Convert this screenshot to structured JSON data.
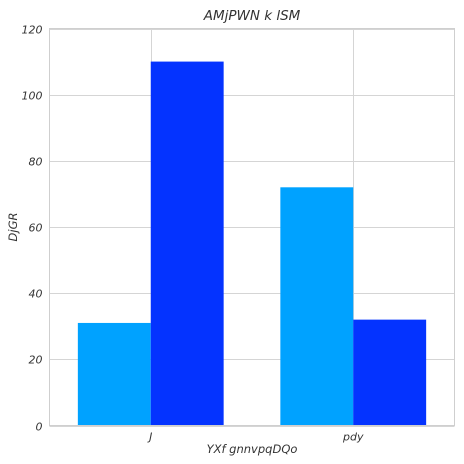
{
  "chart_data": {
    "type": "bar",
    "title": "AMjPWN k lSM",
    "xlabel": "YXf gnnvpqDQo",
    "ylabel": "DjGR",
    "categories": [
      "J",
      "pdy"
    ],
    "series": [
      {
        "values": [
          31,
          72
        ],
        "color": "#00a2ff"
      },
      {
        "values": [
          110,
          32
        ],
        "color": "#0433ff"
      }
    ],
    "ylim": [
      0,
      120
    ],
    "yticks": [
      0,
      20,
      40,
      60,
      80,
      100,
      120
    ],
    "grid": true,
    "legend": "none"
  }
}
